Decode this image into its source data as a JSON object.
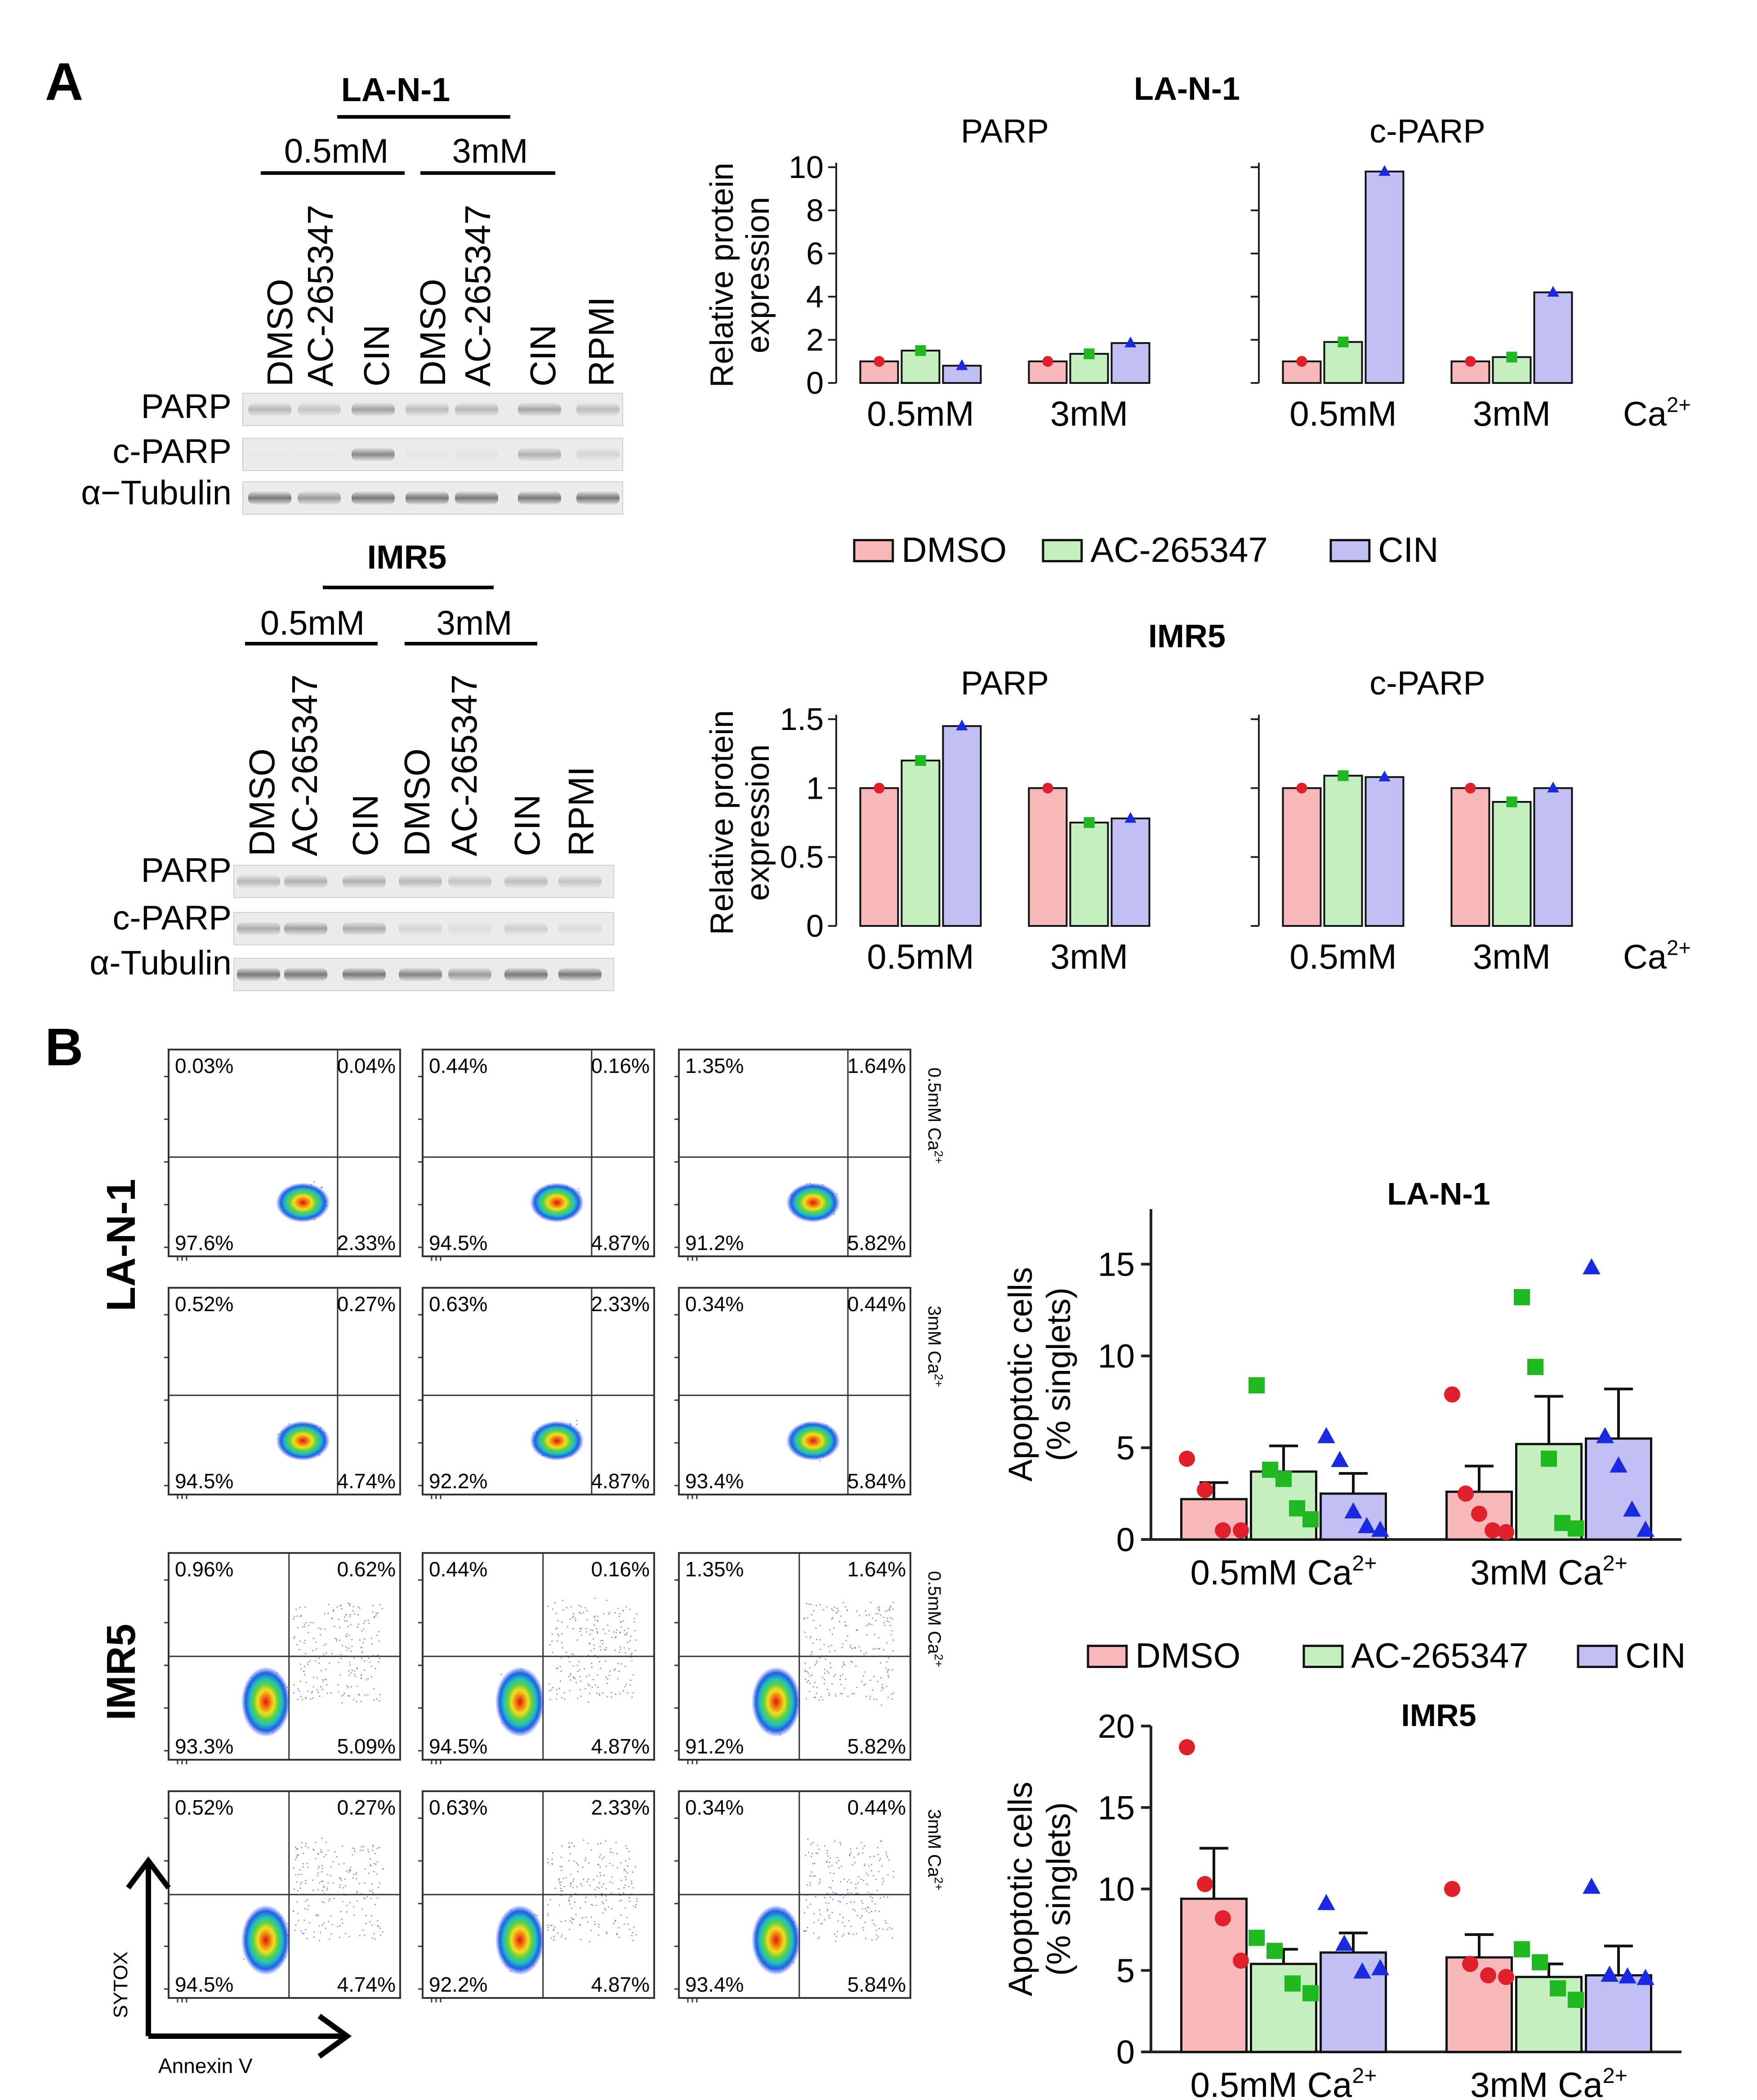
{
  "panel_labels": {
    "a": "A",
    "b": "B"
  },
  "western": {
    "blots": [
      {
        "cell": "LA-N-1",
        "groups": [
          "0.5mM",
          "3mM"
        ],
        "lanes": [
          "DMSO",
          "AC-265347",
          "CIN",
          "DMSO",
          "AC-265347",
          "CIN",
          "RPMI"
        ],
        "rows": [
          "PARP",
          "c-PARP",
          "α−Tubulin"
        ]
      },
      {
        "cell": "IMR5",
        "groups": [
          "0.5mM",
          "3mM"
        ],
        "lanes": [
          "DMSO",
          "AC-265347",
          "CIN",
          "DMSO",
          "AC-265347",
          "CIN",
          "RPMI"
        ],
        "rows": [
          "PARP",
          "c-PARP",
          "α-Tubulin"
        ]
      }
    ]
  },
  "legend": {
    "items": [
      {
        "label": "DMSO",
        "fill": "#f6b8b8",
        "marker": "#e0202a"
      },
      {
        "label": "AC-265347",
        "fill": "#c4f0c0",
        "marker": "#20b820"
      },
      {
        "label": "CIN",
        "fill": "#c0c0f4",
        "marker": "#1a2ae0"
      }
    ]
  },
  "ca_label": "Ca",
  "ca_sup": "2+",
  "chart_data": [
    {
      "type": "bar",
      "title": "LA-N-1",
      "subtitle": "PARP",
      "ylabel": [
        "Relative protein",
        "expression"
      ],
      "categories": [
        "0.5mM",
        "3mM"
      ],
      "ylim": [
        0,
        10
      ],
      "yticks": [
        "0",
        "2",
        "4",
        "6",
        "8",
        "10"
      ],
      "series": [
        {
          "name": "DMSO",
          "values": [
            1.0,
            1.0
          ]
        },
        {
          "name": "AC-265347",
          "values": [
            1.5,
            1.35
          ]
        },
        {
          "name": "CIN",
          "values": [
            0.8,
            1.85
          ]
        }
      ]
    },
    {
      "type": "bar",
      "subtitle": "c-PARP",
      "categories": [
        "0.5mM",
        "3mM"
      ],
      "ylim": [
        0,
        10
      ],
      "series": [
        {
          "name": "DMSO",
          "values": [
            1.0,
            1.0
          ]
        },
        {
          "name": "AC-265347",
          "values": [
            1.9,
            1.2
          ]
        },
        {
          "name": "CIN",
          "values": [
            9.8,
            4.2
          ]
        }
      ]
    },
    {
      "type": "bar",
      "title": "IMR5",
      "subtitle": "PARP",
      "ylabel": [
        "Relative protein",
        "expression"
      ],
      "categories": [
        "0.5mM",
        "3mM"
      ],
      "ylim": [
        0,
        1.5
      ],
      "yticks": [
        "0",
        "0.5",
        "1",
        "1.5"
      ],
      "series": [
        {
          "name": "DMSO",
          "values": [
            1.0,
            1.0
          ]
        },
        {
          "name": "AC-265347",
          "values": [
            1.2,
            0.75
          ]
        },
        {
          "name": "CIN",
          "values": [
            1.45,
            0.78
          ]
        }
      ]
    },
    {
      "type": "bar",
      "subtitle": "c-PARP",
      "categories": [
        "0.5mM",
        "3mM"
      ],
      "ylim": [
        0,
        1.5
      ],
      "series": [
        {
          "name": "DMSO",
          "values": [
            1.0,
            1.0
          ]
        },
        {
          "name": "AC-265347",
          "values": [
            1.09,
            0.9
          ]
        },
        {
          "name": "CIN",
          "values": [
            1.08,
            1.0
          ]
        }
      ]
    },
    {
      "type": "bar",
      "title": "LA-N-1",
      "ylabel": [
        "Apoptotic cells",
        "(% singlets)"
      ],
      "categories": [
        "0.5mM",
        "3mM"
      ],
      "ylim": [
        0,
        18
      ],
      "yticks": [
        "0",
        "5",
        "10",
        "15"
      ],
      "series": [
        {
          "name": "DMSO",
          "values": [
            2.2,
            2.6
          ],
          "errors": [
            0.9,
            1.4
          ],
          "points": [
            [
              4.4,
              2.7,
              0.5,
              0.5
            ],
            [
              7.9,
              2.5,
              1.4,
              0.5,
              0.4
            ]
          ]
        },
        {
          "name": "AC-265347",
          "values": [
            3.7,
            5.2
          ],
          "errors": [
            1.4,
            2.6
          ],
          "points": [
            [
              8.4,
              3.8,
              3.3,
              1.7,
              1.1
            ],
            [
              13.2,
              9.4,
              4.4,
              0.9,
              0.6
            ]
          ]
        },
        {
          "name": "CIN",
          "values": [
            2.5,
            5.5
          ],
          "errors": [
            1.1,
            2.7
          ],
          "points": [
            [
              5.6,
              4.3,
              1.5,
              0.7,
              0.5
            ],
            [
              14.8,
              5.6,
              4.0,
              1.6,
              0.5
            ]
          ]
        }
      ]
    },
    {
      "type": "bar",
      "title": "IMR5",
      "ylabel": [
        "Apoptotic cells",
        "(% singlets)"
      ],
      "categories": [
        "0.5mM",
        "3mM"
      ],
      "ylim": [
        0,
        20
      ],
      "yticks": [
        "0",
        "5",
        "10",
        "15",
        "20"
      ],
      "series": [
        {
          "name": "DMSO",
          "values": [
            9.4,
            5.8
          ],
          "errors": [
            3.1,
            1.4
          ],
          "points": [
            [
              18.7,
              10.3,
              8.2,
              5.6
            ],
            [
              10.0,
              5.4,
              4.7,
              4.6
            ]
          ]
        },
        {
          "name": "AC-265347",
          "values": [
            5.4,
            4.6
          ],
          "errors": [
            0.9,
            0.8
          ],
          "points": [
            [
              7.0,
              6.2,
              4.2,
              3.6
            ],
            [
              6.3,
              5.5,
              3.9,
              3.2
            ]
          ]
        },
        {
          "name": "CIN",
          "values": [
            6.1,
            4.7
          ],
          "errors": [
            1.2,
            1.8
          ],
          "points": [
            [
              9.1,
              6.6,
              4.9,
              5.1
            ],
            [
              10.1,
              4.7,
              4.6,
              4.5
            ]
          ]
        }
      ]
    }
  ],
  "flow": {
    "cells": [
      "LA-N-1",
      "IMR5"
    ],
    "conditions": [
      "0.5mM Ca",
      "3mM Ca"
    ],
    "xaxis": "Annexin V",
    "yaxis": "SYTOX",
    "plots": [
      [
        [
          "0.03%",
          "0.04%",
          "97.6%",
          "2.33%"
        ],
        [
          "0.44%",
          "0.16%",
          "94.5%",
          "4.87%"
        ],
        [
          "1.35%",
          "1.64%",
          "91.2%",
          "5.82%"
        ]
      ],
      [
        [
          "0.52%",
          "0.27%",
          "94.5%",
          "4.74%"
        ],
        [
          "0.63%",
          "2.33%",
          "92.2%",
          "4.87%"
        ],
        [
          "0.34%",
          "0.44%",
          "93.4%",
          "5.84%"
        ]
      ],
      [
        [
          "0.96%",
          "0.62%",
          "93.3%",
          "5.09%"
        ],
        [
          "0.44%",
          "0.16%",
          "94.5%",
          "4.87%"
        ],
        [
          "1.35%",
          "1.64%",
          "91.2%",
          "5.82%"
        ]
      ],
      [
        [
          "0.52%",
          "0.27%",
          "94.5%",
          "4.74%"
        ],
        [
          "0.63%",
          "2.33%",
          "92.2%",
          "4.87%"
        ],
        [
          "0.34%",
          "0.44%",
          "93.4%",
          "5.84%"
        ]
      ]
    ]
  }
}
